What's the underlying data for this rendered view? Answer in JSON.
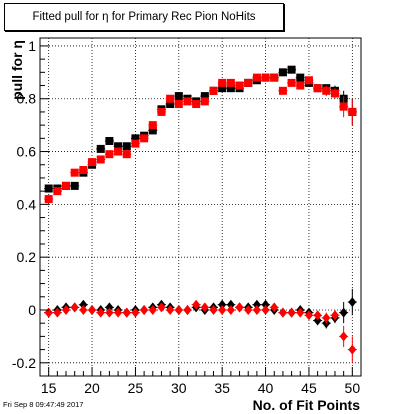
{
  "chart_data": {
    "type": "scatter",
    "title": "Fitted pull for  η for Primary Rec Pion NoHits",
    "xlabel": "No. of Fit Points",
    "ylabel": "pull for  η",
    "xlim": [
      14,
      51
    ],
    "ylim": [
      -0.25,
      1.03
    ],
    "x_ticks": [
      15,
      20,
      25,
      30,
      35,
      40,
      45,
      50
    ],
    "y_ticks": [
      -0.2,
      0,
      0.2,
      0.4,
      0.6,
      0.8,
      1
    ],
    "y_tick_labels": [
      "-0.2",
      "0",
      "0.2",
      "0.4",
      "0.6",
      "0.8",
      "1"
    ],
    "grid": true,
    "series": [
      {
        "marker": "square",
        "color": "#000000",
        "x": [
          15,
          16,
          17,
          18,
          19,
          20,
          21,
          22,
          23,
          24,
          25,
          26,
          27,
          28,
          29,
          30,
          31,
          32,
          33,
          34,
          35,
          36,
          37,
          38,
          39,
          40,
          41,
          42,
          43,
          44,
          45,
          46,
          47,
          48,
          49,
          50
        ],
        "y": [
          0.46,
          0.46,
          0.47,
          0.47,
          0.52,
          0.55,
          0.61,
          0.64,
          0.62,
          0.62,
          0.65,
          0.66,
          0.68,
          0.76,
          0.78,
          0.81,
          0.8,
          0.79,
          0.81,
          0.83,
          0.84,
          0.84,
          0.84,
          0.86,
          0.87,
          0.88,
          0.88,
          0.9,
          0.91,
          0.88,
          0.86,
          0.84,
          0.84,
          0.83,
          0.8,
          0.75
        ],
        "err": [
          0.005,
          0.005,
          0.005,
          0.005,
          0.005,
          0.005,
          0.005,
          0.005,
          0.005,
          0.005,
          0.005,
          0.005,
          0.005,
          0.005,
          0.005,
          0.005,
          0.005,
          0.005,
          0.005,
          0.005,
          0.005,
          0.005,
          0.005,
          0.005,
          0.005,
          0.005,
          0.005,
          0.005,
          0.005,
          0.005,
          0.01,
          0.01,
          0.015,
          0.02,
          0.03,
          0.05
        ]
      },
      {
        "marker": "square",
        "color": "#ff0000",
        "x": [
          15,
          16,
          17,
          18,
          19,
          20,
          21,
          22,
          23,
          24,
          25,
          26,
          27,
          28,
          29,
          30,
          31,
          32,
          33,
          34,
          35,
          36,
          37,
          38,
          39,
          40,
          41,
          42,
          43,
          44,
          45,
          46,
          47,
          48,
          49,
          50
        ],
        "y": [
          0.42,
          0.45,
          0.47,
          0.52,
          0.53,
          0.56,
          0.57,
          0.59,
          0.6,
          0.59,
          0.63,
          0.65,
          0.7,
          0.75,
          0.8,
          0.78,
          0.79,
          0.78,
          0.79,
          0.83,
          0.86,
          0.86,
          0.85,
          0.86,
          0.88,
          0.88,
          0.88,
          0.83,
          0.86,
          0.85,
          0.87,
          0.84,
          0.83,
          0.82,
          0.77,
          0.75
        ],
        "err": [
          0.005,
          0.005,
          0.005,
          0.005,
          0.005,
          0.005,
          0.005,
          0.005,
          0.005,
          0.005,
          0.005,
          0.005,
          0.005,
          0.005,
          0.005,
          0.005,
          0.005,
          0.005,
          0.005,
          0.005,
          0.005,
          0.005,
          0.005,
          0.005,
          0.005,
          0.005,
          0.005,
          0.005,
          0.005,
          0.005,
          0.01,
          0.01,
          0.02,
          0.02,
          0.04,
          0.05
        ]
      },
      {
        "marker": "diamond",
        "color": "#000000",
        "x": [
          15,
          16,
          17,
          18,
          19,
          20,
          21,
          22,
          23,
          24,
          25,
          26,
          27,
          28,
          29,
          30,
          31,
          32,
          33,
          34,
          35,
          36,
          37,
          38,
          39,
          40,
          41,
          42,
          43,
          44,
          45,
          46,
          47,
          48,
          49,
          50
        ],
        "y": [
          -0.01,
          0.0,
          0.01,
          0.01,
          0.02,
          0.0,
          0.0,
          0.01,
          0.0,
          -0.01,
          0.0,
          0.0,
          0.01,
          0.02,
          0.01,
          0.0,
          0.0,
          0.01,
          0.0,
          0.01,
          0.02,
          0.02,
          0.01,
          0.01,
          0.02,
          0.02,
          0.0,
          -0.01,
          -0.01,
          0.0,
          -0.01,
          -0.04,
          -0.05,
          -0.03,
          -0.01,
          0.03
        ],
        "err": [
          0.005,
          0.005,
          0.005,
          0.005,
          0.005,
          0.005,
          0.005,
          0.005,
          0.005,
          0.005,
          0.005,
          0.005,
          0.005,
          0.005,
          0.005,
          0.005,
          0.005,
          0.005,
          0.005,
          0.005,
          0.005,
          0.005,
          0.005,
          0.005,
          0.005,
          0.005,
          0.005,
          0.005,
          0.005,
          0.005,
          0.01,
          0.01,
          0.02,
          0.02,
          0.04,
          0.05
        ]
      },
      {
        "marker": "diamond",
        "color": "#ff0000",
        "x": [
          15,
          16,
          17,
          18,
          19,
          20,
          21,
          22,
          23,
          24,
          25,
          26,
          27,
          28,
          29,
          30,
          31,
          32,
          33,
          34,
          35,
          36,
          37,
          38,
          39,
          40,
          41,
          42,
          43,
          44,
          45,
          46,
          47,
          48,
          49,
          50
        ],
        "y": [
          -0.01,
          -0.01,
          0.0,
          0.01,
          0.0,
          0.0,
          -0.01,
          -0.01,
          -0.01,
          -0.01,
          -0.01,
          0.0,
          0.0,
          0.01,
          0.0,
          0.0,
          0.0,
          0.02,
          0.01,
          0.0,
          0.0,
          0.0,
          0.01,
          0.0,
          0.0,
          0.0,
          0.01,
          -0.01,
          -0.01,
          -0.01,
          -0.02,
          -0.02,
          -0.03,
          -0.02,
          -0.1,
          -0.15
        ],
        "err": [
          0.005,
          0.005,
          0.005,
          0.005,
          0.005,
          0.005,
          0.005,
          0.005,
          0.005,
          0.005,
          0.005,
          0.005,
          0.005,
          0.005,
          0.005,
          0.005,
          0.005,
          0.005,
          0.005,
          0.005,
          0.005,
          0.005,
          0.005,
          0.005,
          0.005,
          0.005,
          0.005,
          0.005,
          0.005,
          0.005,
          0.01,
          0.01,
          0.02,
          0.02,
          0.04,
          0.05
        ]
      }
    ]
  },
  "footer": {
    "timestamp": "Fri Sep  8 09:47:49 2017"
  }
}
